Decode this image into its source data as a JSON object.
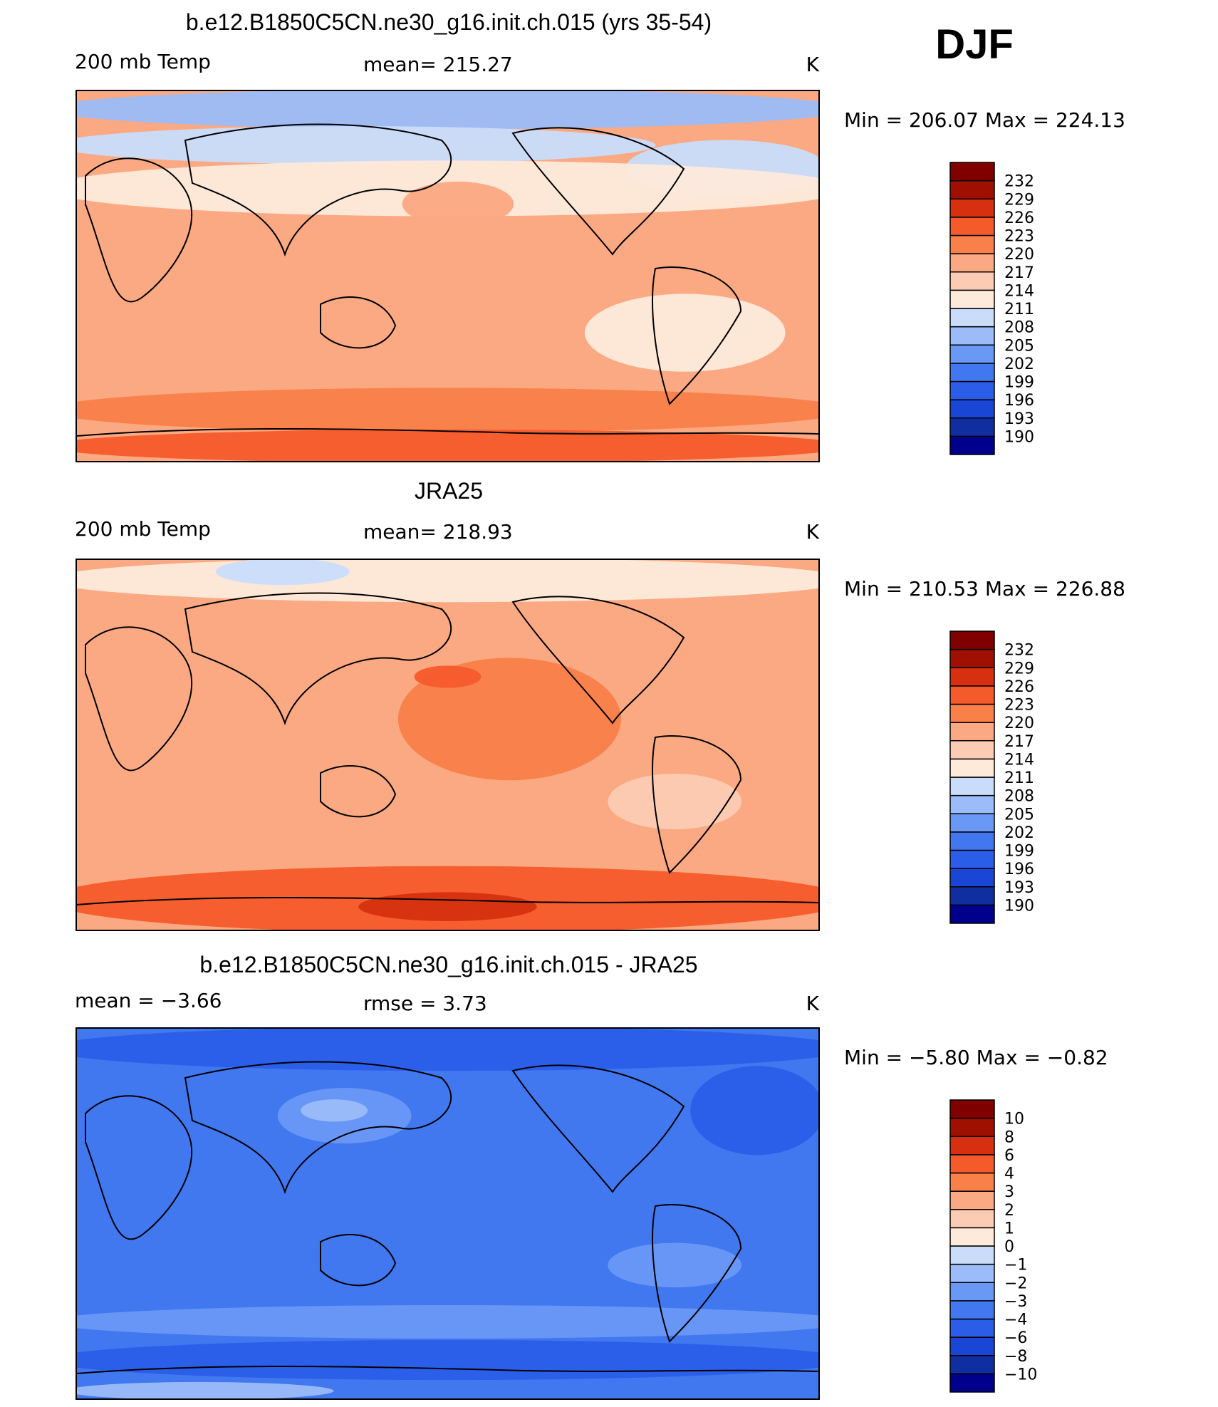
{
  "season": "DJF",
  "chart_data": [
    {
      "type": "heatmap",
      "title": "b.e12.B1850C5CN.ne30_g16.init.ch.015 (yrs 35-54)",
      "left_label": "200 mb Temp",
      "center_label": "mean=  215.27",
      "units": "K",
      "min": 206.07,
      "max": 224.13,
      "minmax_label": "Min  =  206.07  Max  =  224.13",
      "colorbar_levels": [
        "190",
        "193",
        "196",
        "199",
        "202",
        "205",
        "208",
        "211",
        "214",
        "217",
        "220",
        "223",
        "226",
        "229",
        "232"
      ],
      "background_level": 217,
      "regions": [
        {
          "name": "arctic-cold",
          "level": 206,
          "lat": [
            72,
            90
          ],
          "lon": [
            -180,
            180
          ]
        },
        {
          "name": "eurasia-cool",
          "level": 208,
          "lat": [
            55,
            72
          ],
          "lon": [
            -180,
            90
          ]
        },
        {
          "name": "north-america-cool",
          "level": 208,
          "lat": [
            40,
            65
          ],
          "lon": [
            90,
            180
          ]
        },
        {
          "name": "midlat-band",
          "level": 212,
          "lat": [
            30,
            55
          ],
          "lon": [
            -180,
            180
          ]
        },
        {
          "name": "east-asia-jet",
          "level": 219,
          "lat": [
            25,
            45
          ],
          "lon": [
            -20,
            30
          ]
        },
        {
          "name": "east-pacific-cool",
          "level": 212,
          "lat": [
            -45,
            -10
          ],
          "lon": [
            70,
            160
          ]
        },
        {
          "name": "southern-warm-band",
          "level": 221,
          "lat": [
            -75,
            -55
          ],
          "lon": [
            -180,
            180
          ]
        },
        {
          "name": "antarctic-warm",
          "level": 223,
          "lat": [
            -90,
            -75
          ],
          "lon": [
            -180,
            180
          ]
        }
      ]
    },
    {
      "type": "heatmap",
      "title": "JRA25",
      "left_label": "200 mb Temp",
      "center_label": "mean=  218.93",
      "units": "K",
      "min": 210.53,
      "max": 226.88,
      "minmax_label": "Min  =  210.53  Max  =  226.88",
      "colorbar_levels": [
        "190",
        "193",
        "196",
        "199",
        "202",
        "205",
        "208",
        "211",
        "214",
        "217",
        "220",
        "223",
        "226",
        "229",
        "232"
      ],
      "background_level": 218,
      "regions": [
        {
          "name": "arctic-cool",
          "level": 212,
          "lat": [
            70,
            90
          ],
          "lon": [
            -180,
            180
          ]
        },
        {
          "name": "siberia-cold",
          "level": 209,
          "lat": [
            78,
            90
          ],
          "lon": [
            -110,
            -50
          ]
        },
        {
          "name": "west-pacific-warm",
          "level": 221,
          "lat": [
            -15,
            40
          ],
          "lon": [
            -20,
            80
          ]
        },
        {
          "name": "jet-core",
          "level": 224,
          "lat": [
            28,
            38
          ],
          "lon": [
            -15,
            15
          ]
        },
        {
          "name": "east-pacific-cool",
          "level": 215,
          "lat": [
            -40,
            -15
          ],
          "lon": [
            80,
            140
          ]
        },
        {
          "name": "southern-warm-band",
          "level": 223,
          "lat": [
            -90,
            -60
          ],
          "lon": [
            -180,
            180
          ]
        },
        {
          "name": "antarctic-peak",
          "level": 226,
          "lat": [
            -85,
            -72
          ],
          "lon": [
            -40,
            40
          ]
        }
      ]
    },
    {
      "type": "heatmap",
      "title": "b.e12.B1850C5CN.ne30_g16.init.ch.015 - JRA25",
      "left_label": "mean  =    −3.66",
      "center_label": "rmse  =     3.73",
      "units": "K",
      "min": -5.8,
      "max": -0.82,
      "minmax_label": "Min  =    −5.80  Max  =    −0.82",
      "colorbar_levels": [
        "−10",
        "−8",
        "−6",
        "−4",
        "−3",
        "−2",
        "−1",
        "0",
        "1",
        "2",
        "3",
        "4",
        "6",
        "8",
        "10"
      ],
      "background_level": -3.5,
      "regions": [
        {
          "name": "arctic-cold",
          "level": -4.5,
          "lat": [
            70,
            90
          ],
          "lon": [
            -180,
            180
          ]
        },
        {
          "name": "asia-warm",
          "level": -2.5,
          "lat": [
            35,
            60
          ],
          "lon": [
            -80,
            -20
          ]
        },
        {
          "name": "asia-core",
          "level": -1.5,
          "lat": [
            45,
            55
          ],
          "lon": [
            -70,
            -40
          ]
        },
        {
          "name": "north-america-cold",
          "level": -4.5,
          "lat": [
            30,
            70
          ],
          "lon": [
            120,
            180
          ]
        },
        {
          "name": "east-pacific-warm",
          "level": -2.5,
          "lat": [
            -35,
            -15
          ],
          "lon": [
            80,
            140
          ]
        },
        {
          "name": "southern-band",
          "level": -2.5,
          "lat": [
            -60,
            -45
          ],
          "lon": [
            -180,
            180
          ]
        },
        {
          "name": "antarctic-cold",
          "level": -4.5,
          "lat": [
            -80,
            -62
          ],
          "lon": [
            -180,
            180
          ]
        },
        {
          "name": "south-pole-warm",
          "level": -2,
          "lat": [
            -90,
            -82
          ],
          "lon": [
            -180,
            -60
          ]
        }
      ]
    }
  ],
  "colors": {
    "temperature_fills": [
      "#00008c",
      "#0f2ea0",
      "#1a46d6",
      "#2a5ee8",
      "#4178f0",
      "#6a98f5",
      "#9bbcf8",
      "#c9ddfb",
      "#fdeadb",
      "#fccbb3",
      "#fba982",
      "#f98049",
      "#f55a2b",
      "#d63010",
      "#a01000",
      "#800000"
    ],
    "difference_fills": [
      "#00008c",
      "#0f2ea0",
      "#1a46d6",
      "#2a5ee8",
      "#4178f0",
      "#6a98f5",
      "#9bbcf8",
      "#c9ddfb",
      "#fdeadb",
      "#fccbb3",
      "#fba982",
      "#f98049",
      "#f55a2b",
      "#d63010",
      "#a01000",
      "#800000"
    ]
  }
}
